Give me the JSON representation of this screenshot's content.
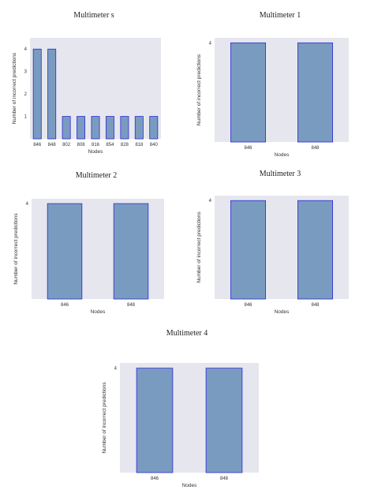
{
  "figure": {
    "background": "#ffffff",
    "plot_background": "#e6e6ee",
    "bar_fill": "#7a9bc0",
    "bar_edge": "#2b2bd6"
  },
  "chart_data": [
    {
      "type": "bar",
      "title": "Multimeter s",
      "xlabel": "Nodes",
      "ylabel": "Number of incorrect predictions",
      "categories": [
        "846",
        "848",
        "802",
        "808",
        "816",
        "854",
        "828",
        "818",
        "840"
      ],
      "values": [
        4,
        4,
        1,
        1,
        1,
        1,
        1,
        1,
        1
      ],
      "yticks": [
        "1",
        "2",
        "3",
        "4"
      ],
      "ylim": [
        0,
        4.5
      ],
      "grid": false,
      "legend": "none"
    },
    {
      "type": "bar",
      "title": "Multimeter 1",
      "xlabel": "Nodes",
      "ylabel": "Number of incorrect predictions",
      "categories": [
        "846",
        "848"
      ],
      "values": [
        4,
        4
      ],
      "yticks": [
        "4"
      ],
      "ylim": [
        0,
        4.2
      ],
      "grid": false,
      "legend": "none"
    },
    {
      "type": "bar",
      "title": "Multimeter 2",
      "xlabel": "Nodes",
      "ylabel": "Number of incorrect predictions",
      "categories": [
        "846",
        "848"
      ],
      "values": [
        4,
        4
      ],
      "yticks": [
        "4"
      ],
      "ylim": [
        0,
        4.2
      ],
      "grid": false,
      "legend": "none"
    },
    {
      "type": "bar",
      "title": "Multimeter 3",
      "xlabel": "Nodes",
      "ylabel": "Number of incorrect predictions",
      "categories": [
        "846",
        "848"
      ],
      "values": [
        4,
        4
      ],
      "yticks": [
        "4"
      ],
      "ylim": [
        0,
        4.2
      ],
      "grid": false,
      "legend": "none"
    },
    {
      "type": "bar",
      "title": "Multimeter 4",
      "xlabel": "Nodes",
      "ylabel": "Number of incorrect predictions",
      "categories": [
        "846",
        "848"
      ],
      "values": [
        4,
        4
      ],
      "yticks": [
        "4"
      ],
      "ylim": [
        0,
        4.2
      ],
      "grid": false,
      "legend": "none"
    }
  ]
}
